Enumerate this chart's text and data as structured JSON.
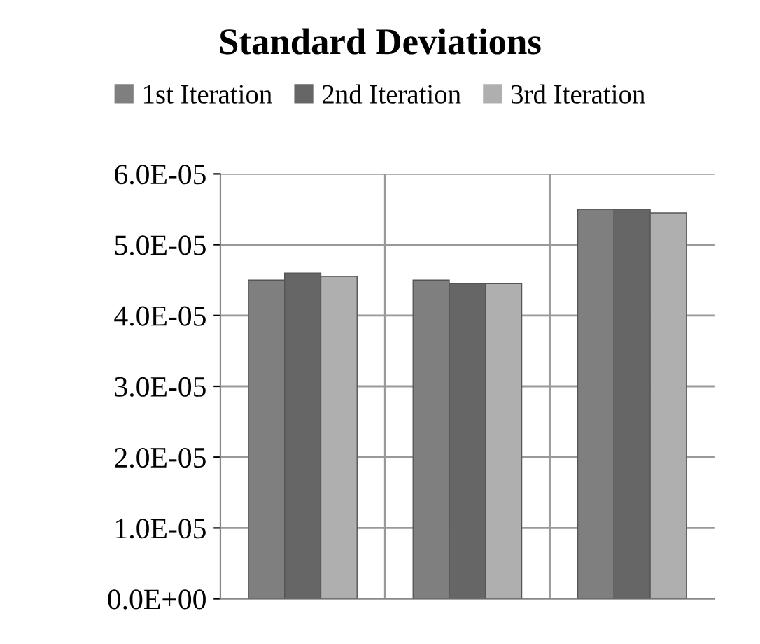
{
  "chart_data": {
    "type": "bar",
    "title": "Standard Deviations",
    "categories": [
      null,
      null,
      null
    ],
    "series": [
      {
        "name": "1st Iteration",
        "color": "#7f7f7f",
        "values": [
          4.5e-05,
          4.5e-05,
          5.5e-05
        ]
      },
      {
        "name": "2nd Iteration",
        "color": "#666666",
        "values": [
          4.6e-05,
          4.45e-05,
          5.5e-05
        ]
      },
      {
        "name": "3rd Iteration",
        "color": "#afafaf",
        "values": [
          4.55e-05,
          4.45e-05,
          5.45e-05
        ]
      }
    ],
    "ylim": [
      0,
      6e-05
    ],
    "yticks": [
      {
        "value": 0,
        "label": "0.0E+00"
      },
      {
        "value": 1e-05,
        "label": "1.0E-05"
      },
      {
        "value": 2e-05,
        "label": "2.0E-05"
      },
      {
        "value": 3e-05,
        "label": "3.0E-05"
      },
      {
        "value": 4e-05,
        "label": "4.0E-05"
      },
      {
        "value": 5e-05,
        "label": "5.0E-05"
      },
      {
        "value": 6e-05,
        "label": "6.0E-05"
      }
    ],
    "grid": true,
    "legend": "top"
  }
}
